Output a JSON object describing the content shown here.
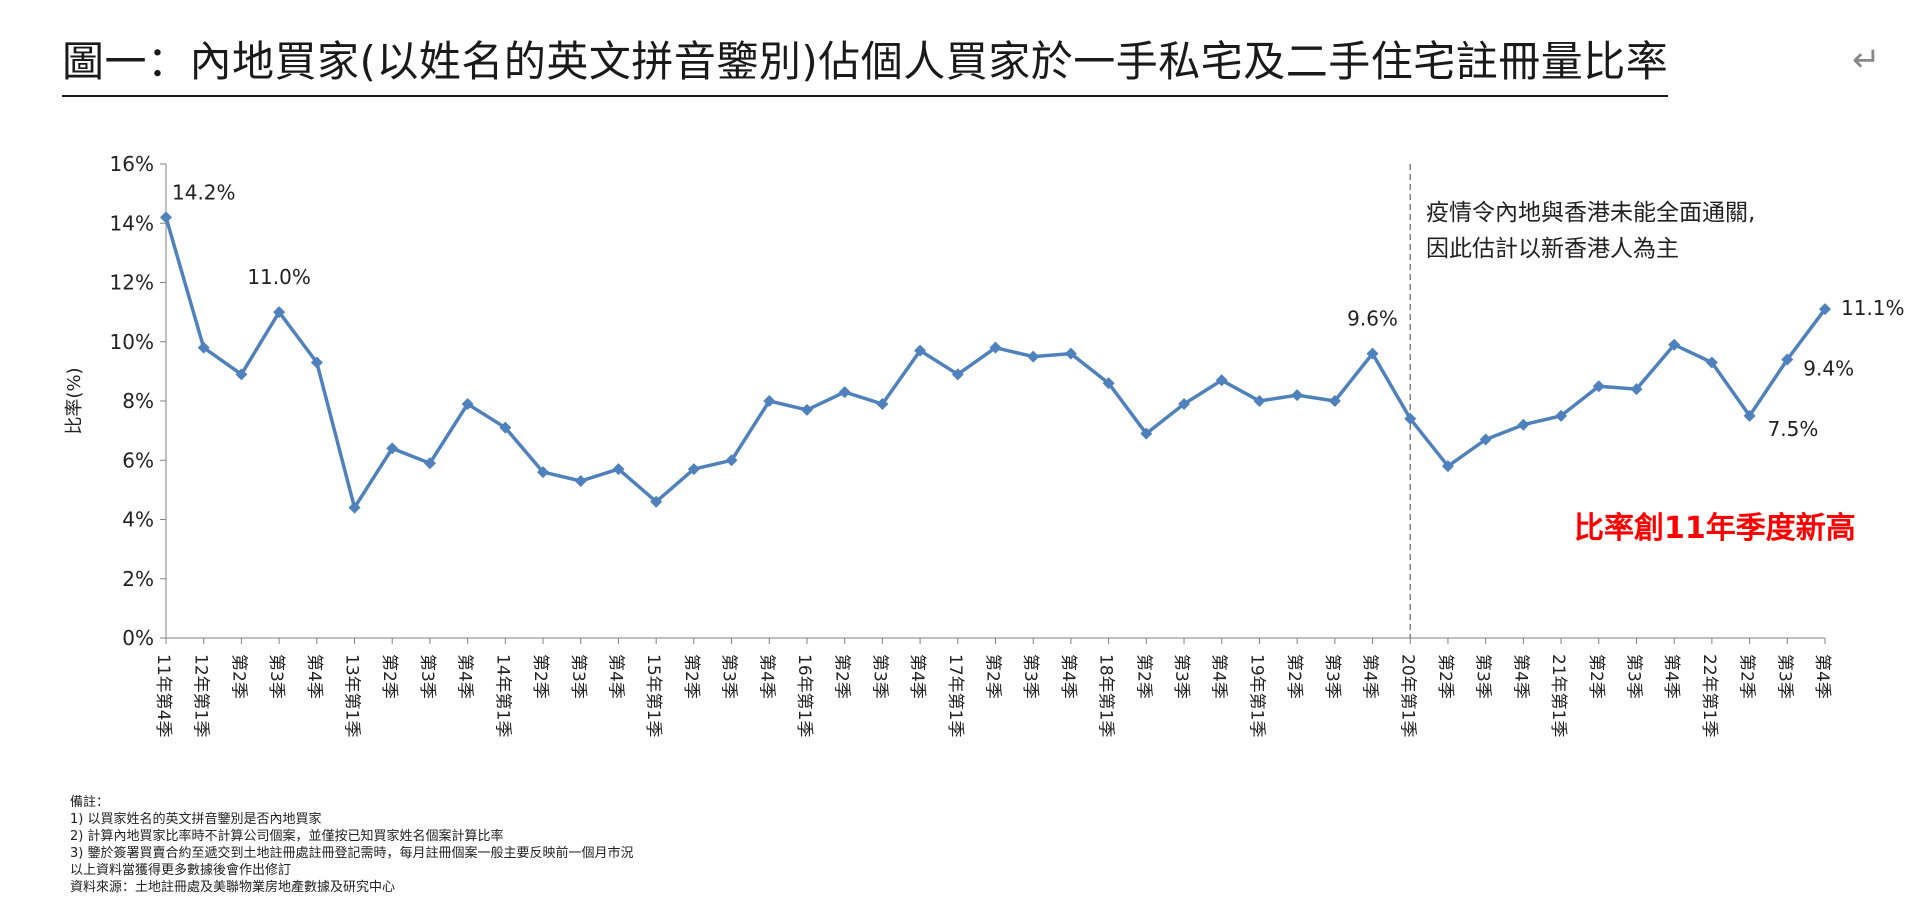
{
  "title": "圖一：內地買家(以姓名的英文拼音鑒別)佔個人買家於一手私宅及二手住宅註冊量比率",
  "title_mark": "↵",
  "chart_data": {
    "type": "line",
    "categories": [
      "11年第4季",
      "12年第1季",
      "第2季",
      "第3季",
      "第4季",
      "13年第1季",
      "第2季",
      "第3季",
      "第4季",
      "14年第1季",
      "第2季",
      "第3季",
      "第4季",
      "15年第1季",
      "第2季",
      "第3季",
      "第4季",
      "16年第1季",
      "第2季",
      "第3季",
      "第4季",
      "17年第1季",
      "第2季",
      "第3季",
      "第4季",
      "18年第1季",
      "第2季",
      "第3季",
      "第4季",
      "19年第1季",
      "第2季",
      "第3季",
      "第4季",
      "20年第1季",
      "第2季",
      "第3季",
      "第4季",
      "21年第1季",
      "第2季",
      "第3季",
      "第4季",
      "22年第1季",
      "第2季",
      "第3季",
      "第4季"
    ],
    "series": [
      {
        "values": [
          14.2,
          9.8,
          8.9,
          11.0,
          9.3,
          4.4,
          6.4,
          5.9,
          7.9,
          7.1,
          5.6,
          5.3,
          5.7,
          4.6,
          5.7,
          6.0,
          8.0,
          7.7,
          8.3,
          7.9,
          9.7,
          8.9,
          9.8,
          9.5,
          9.6,
          8.6,
          6.9,
          7.9,
          8.7,
          8.0,
          8.2,
          8.0,
          9.6,
          7.4,
          5.8,
          6.7,
          7.2,
          7.5,
          8.5,
          8.4,
          9.9,
          9.3,
          7.5,
          9.4,
          11.1
        ]
      }
    ],
    "ylabel": "比率(%)",
    "xlabel": "",
    "ylim": [
      0,
      16
    ],
    "yticks": [
      "0%",
      "2%",
      "4%",
      "6%",
      "8%",
      "10%",
      "12%",
      "14%",
      "16%"
    ],
    "line_color": "#4f81bd",
    "data_labels": [
      {
        "index": 0,
        "text": "14.2%"
      },
      {
        "index": 3,
        "text": "11.0%"
      },
      {
        "index": 32,
        "text": "9.6%"
      },
      {
        "index": 42,
        "text": "7.5%"
      },
      {
        "index": 43,
        "text": "9.4%"
      },
      {
        "index": 44,
        "text": "11.1%"
      }
    ],
    "divider_index": 33,
    "annotations": {
      "covid_line1": "疫情令內地與香港未能全面通關,",
      "covid_line2": "因此估計以新香港人為主",
      "highlight": "比率創11年季度新高",
      "highlight_color": "#ff0000"
    }
  },
  "notes": [
    "備註：",
    "1) 以買家姓名的英文拼音鑒別是否內地買家",
    "2) 計算內地買家比率時不計算公司個案，並僅按已知買家姓名個案計算比率",
    "3) 鑒於簽署買賣合約至遞交到土地註冊處註冊登記需時，每月註冊個案一般主要反映前一個月市況",
    "以上資料當獲得更多數據後會作出修訂",
    "資料來源：土地註冊處及美聯物業房地產數據及研究中心"
  ]
}
